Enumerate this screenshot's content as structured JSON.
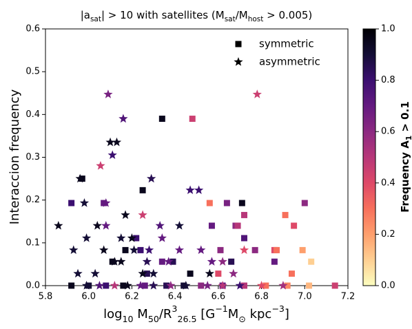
{
  "chart_data": {
    "type": "scatter",
    "title": [
      {
        "text": "|a"
      },
      {
        "text": "sat",
        "script": "sub"
      },
      {
        "text": "| > 10 with satellites (M"
      },
      {
        "text": "sat",
        "script": "sub"
      },
      {
        "text": "/M"
      },
      {
        "text": "host",
        "script": "sub"
      },
      {
        "text": " > 0.005)"
      }
    ],
    "x_label": [
      {
        "text": "log"
      },
      {
        "text": "10",
        "script": "sub"
      },
      {
        "text": " M"
      },
      {
        "text": "50",
        "script": "sub"
      },
      {
        "text": "/R"
      },
      {
        "text": "3",
        "script": "super"
      },
      {
        "text": "26.5",
        "script": "sub"
      },
      {
        "text": " [G"
      },
      {
        "text": "−1",
        "script": "super"
      },
      {
        "text": "M"
      },
      {
        "text": "⊙",
        "script": "sub"
      },
      {
        "text": " kpc"
      },
      {
        "text": "−3",
        "script": "super"
      },
      {
        "text": "]"
      }
    ],
    "y_label": "Interaccion frequency",
    "colorbar_label": [
      {
        "text": "Frequency A"
      },
      {
        "text": "1",
        "script": "sub"
      },
      {
        "text": " > 0.1"
      }
    ],
    "xlim": [
      5.8,
      7.2
    ],
    "xticks": [
      5.8,
      {
        "value": 6.0,
        "label": "6.0"
      },
      6.2,
      6.4,
      6.6,
      6.8,
      {
        "value": 7.0,
        "label": "7.0"
      },
      7.2
    ],
    "ylim": [
      0,
      0.6
    ],
    "yticks": [
      {
        "value": 0,
        "label": "0.0"
      },
      0.1,
      0.2,
      0.3,
      0.4,
      0.5,
      0.6
    ],
    "clim": [
      0,
      1
    ],
    "cticks": [
      {
        "value": 0,
        "label": "0.0"
      },
      0.2,
      0.4,
      0.6,
      0.8,
      {
        "value": 1,
        "label": "1.0"
      }
    ],
    "colormap": [
      "#fcfdbf",
      "#fecf92",
      "#fe9f6d",
      "#f7705c",
      "#de4968",
      "#b73779",
      "#8c2981",
      "#641a80",
      "#3b0f70",
      "#140e36",
      "#000004"
    ],
    "legend": "upper right",
    "series": [
      {
        "name": "symmetric",
        "marker": "square",
        "color": "#000000",
        "x": [
          6.34,
          6.48,
          5.97,
          6.25,
          5.92,
          6.07,
          6.56,
          6.64,
          6.71,
          7.0,
          6.72,
          6.91,
          6.57,
          6.68,
          6.69,
          6.95,
          6.22,
          6.72,
          6.17,
          6.24,
          6.61,
          6.77,
          6.86,
          6.87,
          6.99,
          6.11,
          6.34,
          6.39,
          6.66,
          6.86,
          7.03,
          6.27,
          6.47,
          6.6,
          6.94,
          5.92,
          6.0,
          6.08,
          6.16,
          6.26,
          6.36,
          6.44,
          6.52,
          6.62,
          6.72,
          6.82,
          6.92,
          7.02,
          7.14
        ],
        "y": [
          0.39,
          0.39,
          0.25,
          0.223,
          0.193,
          0.193,
          0.193,
          0.193,
          0.193,
          0.193,
          0.165,
          0.165,
          0.14,
          0.14,
          0.14,
          0.14,
          0.111,
          0.111,
          0.083,
          0.083,
          0.083,
          0.083,
          0.083,
          0.083,
          0.083,
          0.056,
          0.056,
          0.056,
          0.056,
          0.056,
          0.056,
          0.028,
          0.028,
          0.028,
          0.028,
          0,
          0,
          0,
          0,
          0,
          0,
          0,
          0,
          0,
          0,
          0,
          0,
          0,
          0
        ],
        "c": [
          0.95,
          0.45,
          0.95,
          0.95,
          0.8,
          0.7,
          0.3,
          0.65,
          0.95,
          0.6,
          0.5,
          0.3,
          0.7,
          0.6,
          0.5,
          0.4,
          0.8,
          0.75,
          0.95,
          0.8,
          0.6,
          0.6,
          0.4,
          0.3,
          0.2,
          0.95,
          0.7,
          0.85,
          0.85,
          0.7,
          0.1,
          0.85,
          0.95,
          0.4,
          0.3,
          0.95,
          0.9,
          0.8,
          0.95,
          0.7,
          0.85,
          0.9,
          0.6,
          0.7,
          0.5,
          0.3,
          0.25,
          0.15,
          0.45
        ]
      },
      {
        "name": "asymmetric",
        "marker": "star",
        "color": "#000000",
        "x": [
          6.09,
          6.16,
          6.1,
          6.13,
          6.11,
          6.055,
          6.29,
          5.96,
          6.47,
          6.51,
          5.98,
          6.08,
          6.25,
          6.17,
          5.86,
          6.04,
          6.08,
          6.33,
          6.42,
          5.99,
          6.15,
          6.2,
          6.34,
          5.93,
          6.07,
          6.21,
          6.28,
          6.42,
          6.52,
          6.72,
          6.12,
          6.15,
          6.27,
          6.37,
          6.57,
          6.62,
          5.95,
          6.03,
          6.25,
          6.3,
          6.56,
          6.67,
          6.78,
          5.99,
          6.05,
          6.12,
          6.18,
          6.24,
          6.3,
          6.38,
          6.45,
          6.55,
          6.62,
          6.7,
          6.8,
          6.9
        ],
        "y": [
          0.447,
          0.39,
          0.335,
          0.335,
          0.305,
          0.28,
          0.25,
          0.25,
          0.223,
          0.223,
          0.193,
          0.193,
          0.165,
          0.165,
          0.14,
          0.14,
          0.14,
          0.14,
          0.14,
          0.111,
          0.111,
          0.111,
          0.111,
          0.083,
          0.083,
          0.083,
          0.083,
          0.083,
          0.083,
          0.083,
          0.056,
          0.056,
          0.056,
          0.056,
          0.056,
          0.056,
          0.028,
          0.028,
          0.028,
          0.028,
          0.028,
          0.028,
          0.447,
          0,
          0,
          0,
          0,
          0,
          0,
          0,
          0,
          0,
          0,
          0,
          0,
          0
        ],
        "c": [
          0.65,
          0.75,
          0.95,
          0.95,
          0.8,
          0.45,
          0.85,
          0.95,
          0.8,
          0.8,
          0.9,
          0.7,
          0.45,
          0.95,
          0.95,
          0.95,
          0.7,
          0.75,
          0.9,
          0.9,
          0.9,
          0.95,
          0.7,
          0.9,
          0.95,
          0.9,
          0.8,
          0.7,
          0.7,
          0.4,
          0.95,
          0.95,
          0.85,
          0.7,
          0.7,
          0.6,
          0.9,
          0.9,
          0.95,
          0.9,
          0.95,
          0.6,
          0.45,
          0.9,
          0.75,
          0.5,
          0.95,
          0.7,
          0.85,
          0.6,
          0.9,
          0.65,
          0.5,
          0.8,
          0.4,
          0.55
        ]
      }
    ]
  }
}
